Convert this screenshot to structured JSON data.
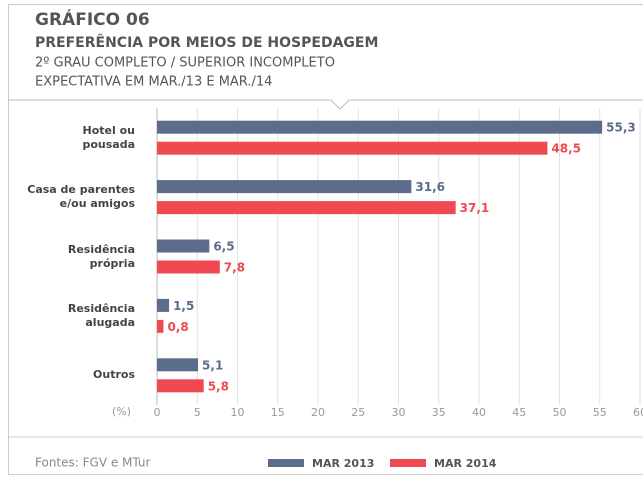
{
  "chart_data": {
    "type": "hbar",
    "label": "GRÁFICO 06",
    "title": "PREFERÊNCIA POR MEIOS DE HOSPEDAGEM",
    "subtitle": [
      "2º GRAU COMPLETO / SUPERIOR INCOMPLETO",
      "EXPECTATIVA EM MAR./13 E MAR./14"
    ],
    "categories": [
      "Hotel ou\npousada",
      "Casa de parentes\ne/ou amigos",
      "Residência\nprópria",
      "Residência\nalugada",
      "Outros"
    ],
    "series": [
      {
        "name": "MAR 2013",
        "color": "#5b6d8a",
        "values": [
          55.3,
          31.6,
          6.5,
          1.5,
          5.1
        ],
        "value_labels": [
          "55,3",
          "31,6",
          "6,5",
          "1,5",
          "5,1"
        ]
      },
      {
        "name": "MAR 2014",
        "color": "#f04a50",
        "values": [
          48.5,
          37.1,
          7.8,
          0.8,
          5.8
        ],
        "value_labels": [
          "48,5",
          "37,1",
          "7,8",
          "0,8",
          "5,8"
        ]
      }
    ],
    "x_label": "(%)",
    "xlim": [
      0,
      60
    ],
    "xticks": [
      0,
      5,
      10,
      15,
      20,
      25,
      30,
      35,
      40,
      45,
      50,
      55,
      60
    ],
    "grid": true,
    "source": "Fontes: FGV e MTur"
  }
}
